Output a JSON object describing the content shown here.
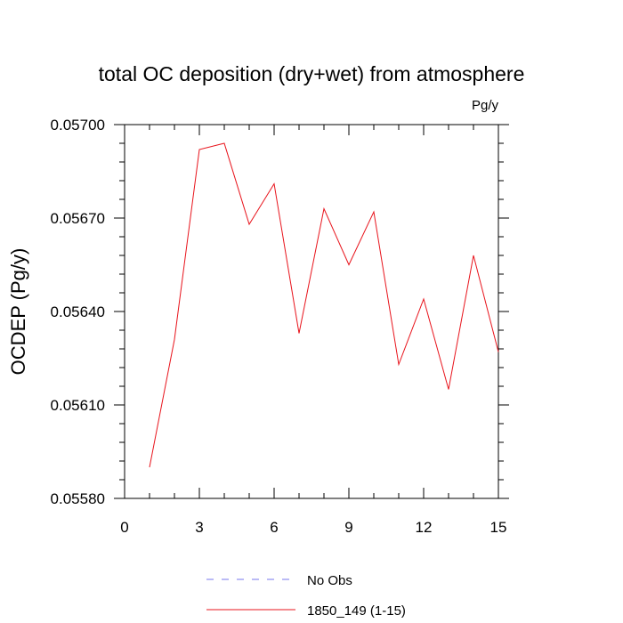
{
  "chart_data": {
    "type": "line",
    "title": "total OC deposition (dry+wet) from atmosphere",
    "units": "Pg/y",
    "ylabel": "OCDEP  (Pg/y)",
    "xlim": [
      0,
      15
    ],
    "ylim": [
      0.0558,
      0.057
    ],
    "x_ticks": [
      0,
      3,
      6,
      9,
      12,
      15
    ],
    "x_tick_labels": [
      "0",
      "3",
      "6",
      "9",
      "12",
      "15"
    ],
    "y_ticks": [
      0.0558,
      0.0561,
      0.0564,
      0.0567,
      0.057
    ],
    "y_tick_labels": [
      "0.05580",
      "0.05610",
      "0.05640",
      "0.05670",
      "0.05700"
    ],
    "series": [
      {
        "name": "1850_149 (1-15)",
        "color": "#e8141c",
        "x": [
          1,
          2,
          3,
          4,
          5,
          6,
          7,
          8,
          9,
          10,
          11,
          12,
          13,
          14,
          15
        ],
        "values": [
          0.0559,
          0.05631,
          0.05692,
          0.05694,
          0.05668,
          0.05681,
          0.05633,
          0.05673,
          0.05655,
          0.05672,
          0.05623,
          0.05644,
          0.05615,
          0.05658,
          0.05627
        ]
      }
    ],
    "legend": {
      "placement": "bottom",
      "entries": [
        {
          "label": "No Obs",
          "color": "#7777ee",
          "style": "dashed"
        },
        {
          "label": "1850_149 (1-15)",
          "color": "#e8141c",
          "style": "solid"
        }
      ]
    }
  }
}
